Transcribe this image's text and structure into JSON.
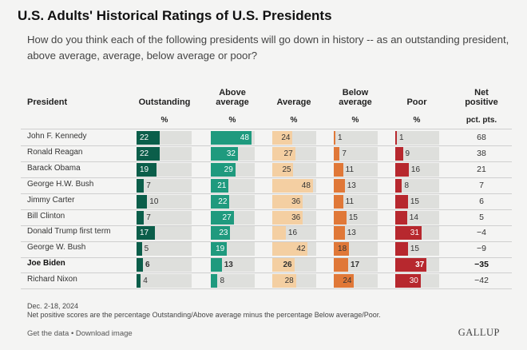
{
  "title": "U.S. Adults' Historical Ratings of U.S. Presidents",
  "subtitle": "How do you think each of the following presidents will go down in history -- as an outstanding president, above average, average, below average or poor?",
  "headers": {
    "president": "President",
    "outstanding": "Outstanding",
    "above_average_1": "Above",
    "above_average_2": "average",
    "average": "Average",
    "below_average_1": "Below",
    "below_average_2": "average",
    "poor": "Poor",
    "net_1": "Net",
    "net_2": "positive"
  },
  "units": {
    "pct": "%",
    "net": "pct. pts."
  },
  "colors": {
    "outstanding": "#0b5e4a",
    "above_average": "#1f9a7e",
    "average": "#f4cfa2",
    "below_average": "#e07838",
    "poor": "#b7282e",
    "track": "#dedfdc"
  },
  "chart_data": {
    "type": "bar",
    "title": "U.S. Adults' Historical Ratings of U.S. Presidents",
    "categories": [
      "John F. Kennedy",
      "Ronald Reagan",
      "Barack Obama",
      "George H.W. Bush",
      "Jimmy Carter",
      "Bill Clinton",
      "Donald Trump first term",
      "George W. Bush",
      "Joe Biden",
      "Richard Nixon"
    ],
    "series": [
      {
        "name": "Outstanding",
        "values": [
          22,
          22,
          19,
          7,
          10,
          7,
          17,
          5,
          6,
          4
        ]
      },
      {
        "name": "Above average",
        "values": [
          48,
          32,
          29,
          21,
          22,
          27,
          23,
          19,
          13,
          8
        ]
      },
      {
        "name": "Average",
        "values": [
          24,
          27,
          25,
          48,
          36,
          36,
          16,
          42,
          26,
          28
        ]
      },
      {
        "name": "Below average",
        "values": [
          1,
          7,
          11,
          13,
          11,
          15,
          13,
          18,
          17,
          24
        ]
      },
      {
        "name": "Poor",
        "values": [
          1,
          9,
          16,
          8,
          15,
          14,
          31,
          15,
          37,
          30
        ]
      }
    ],
    "net_positive": [
      "68",
      "38",
      "21",
      "7",
      "6",
      "5",
      "−4",
      "−9",
      "−35",
      "−42"
    ],
    "highlighted": "Joe Biden",
    "ylim": [
      0,
      100
    ]
  },
  "footnotes": {
    "date": "Dec. 2-18, 2024",
    "note": "Net positive scores are the percentage Outstanding/Above average minus the percentage Below average/Poor."
  },
  "links": {
    "get_data": "Get the data",
    "separator": "•",
    "download": "Download image"
  },
  "brand": "GALLUP"
}
